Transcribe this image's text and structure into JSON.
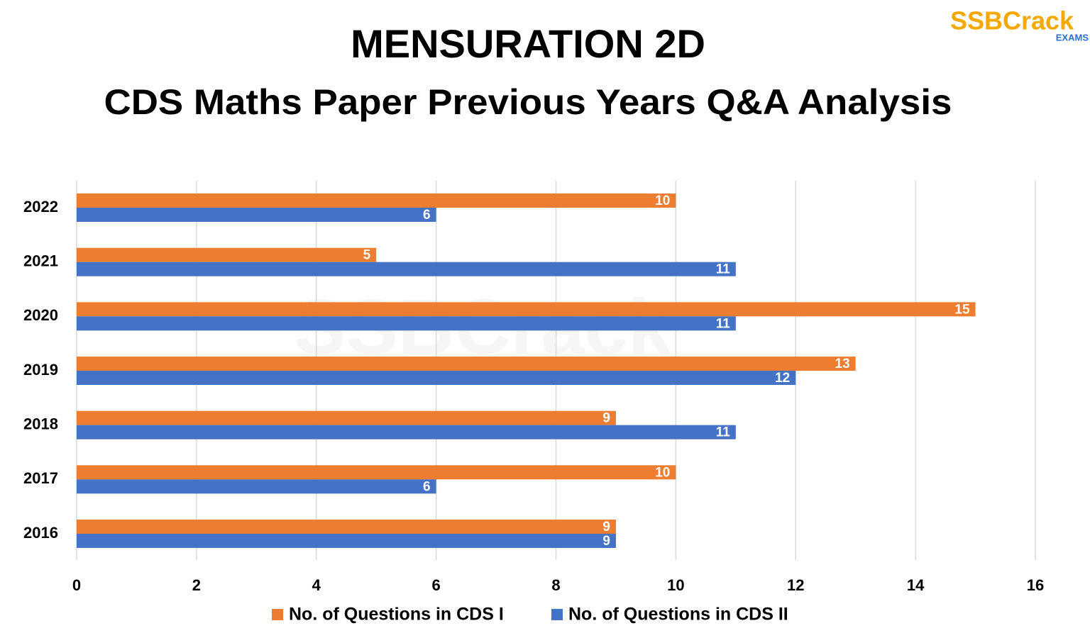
{
  "chart_data": {
    "type": "hbar",
    "title": "MENSURATION 2D",
    "subtitle": "CDS Maths Paper Previous Years Q&A Analysis",
    "logo_text": "SSBCrack",
    "logo_subtext": "EXAMS",
    "categories": [
      "2022",
      "2021",
      "2020",
      "2019",
      "2018",
      "2017",
      "2016"
    ],
    "series": [
      {
        "name": "No. of Questions in CDS I",
        "color": "#ed7d31",
        "values": [
          10,
          5,
          15,
          13,
          9,
          10,
          9
        ]
      },
      {
        "name": "No. of Questions in CDS II",
        "color": "#4472c4",
        "values": [
          6,
          11,
          11,
          12,
          11,
          6,
          9
        ]
      }
    ],
    "xlim": [
      0,
      16
    ],
    "xticks": [
      0,
      2,
      4,
      6,
      8,
      10,
      12,
      14,
      16
    ],
    "grid": true,
    "legend": "bottom"
  }
}
